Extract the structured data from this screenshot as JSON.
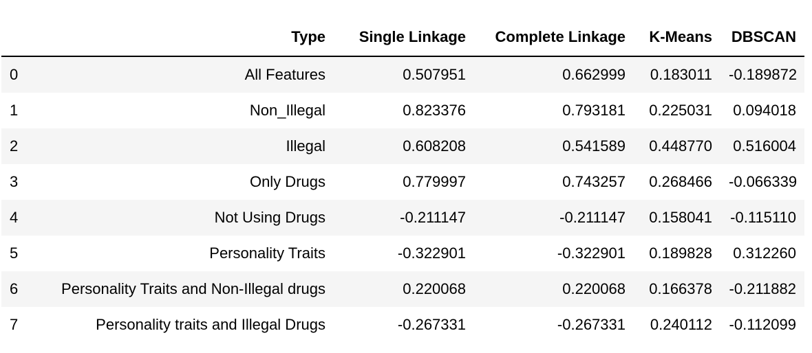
{
  "table": {
    "columns": [
      "",
      "Type",
      "Single Linkage",
      "Complete Linkage",
      "K-Means",
      "DBSCAN"
    ],
    "rows": [
      [
        "0",
        "All Features",
        "0.507951",
        "0.662999",
        "0.183011",
        "-0.189872"
      ],
      [
        "1",
        "Non_Illegal",
        "0.823376",
        "0.793181",
        "0.225031",
        "0.094018"
      ],
      [
        "2",
        "Illegal",
        "0.608208",
        "0.541589",
        "0.448770",
        "0.516004"
      ],
      [
        "3",
        "Only Drugs",
        "0.779997",
        "0.743257",
        "0.268466",
        "-0.066339"
      ],
      [
        "4",
        "Not Using Drugs",
        "-0.211147",
        "-0.211147",
        "0.158041",
        "-0.115110"
      ],
      [
        "5",
        "Personality Traits",
        "-0.322901",
        "-0.322901",
        "0.189828",
        "0.312260"
      ],
      [
        "6",
        "Personality Traits and Non-Illegal drugs",
        "0.220068",
        "0.220068",
        "0.166378",
        "-0.211882"
      ],
      [
        "7",
        "Personality traits and Illegal Drugs",
        "-0.267331",
        "-0.267331",
        "0.240112",
        "-0.112099"
      ]
    ]
  }
}
